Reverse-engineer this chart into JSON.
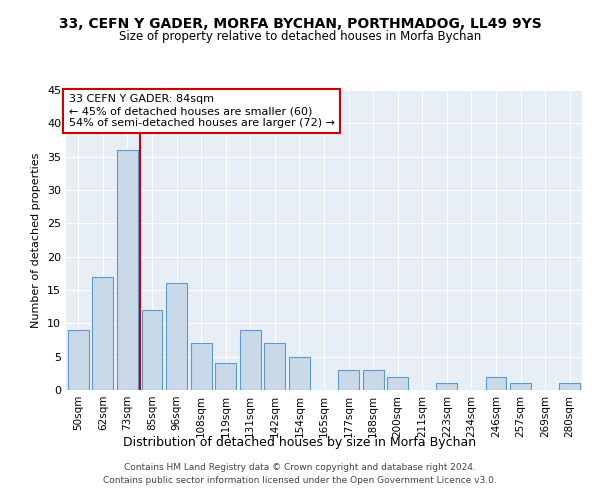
{
  "title1": "33, CEFN Y GADER, MORFA BYCHAN, PORTHMADOG, LL49 9YS",
  "title2": "Size of property relative to detached houses in Morfa Bychan",
  "xlabel": "Distribution of detached houses by size in Morfa Bychan",
  "ylabel": "Number of detached properties",
  "categories": [
    "50sqm",
    "62sqm",
    "73sqm",
    "85sqm",
    "96sqm",
    "108sqm",
    "119sqm",
    "131sqm",
    "142sqm",
    "154sqm",
    "165sqm",
    "177sqm",
    "188sqm",
    "200sqm",
    "211sqm",
    "223sqm",
    "234sqm",
    "246sqm",
    "257sqm",
    "269sqm",
    "280sqm"
  ],
  "values": [
    9,
    17,
    36,
    12,
    16,
    7,
    4,
    9,
    7,
    5,
    0,
    3,
    3,
    2,
    0,
    1,
    0,
    2,
    1,
    0,
    1
  ],
  "bar_color": "#c9d9e8",
  "bar_edge_color": "#5b9bd5",
  "annotation_text_line1": "33 CEFN Y GADER: 84sqm",
  "annotation_text_line2": "← 45% of detached houses are smaller (60)",
  "annotation_text_line3": "54% of semi-detached houses are larger (72) →",
  "annotation_box_color": "#ffffff",
  "annotation_box_edge_color": "#cc0000",
  "vline_color": "#cc0000",
  "vline_x_index": 2.5,
  "ylim": [
    0,
    45
  ],
  "yticks": [
    0,
    5,
    10,
    15,
    20,
    25,
    30,
    35,
    40,
    45
  ],
  "background_color": "#e8eef6",
  "footer_line1": "Contains HM Land Registry data © Crown copyright and database right 2024.",
  "footer_line2": "Contains public sector information licensed under the Open Government Licence v3.0."
}
